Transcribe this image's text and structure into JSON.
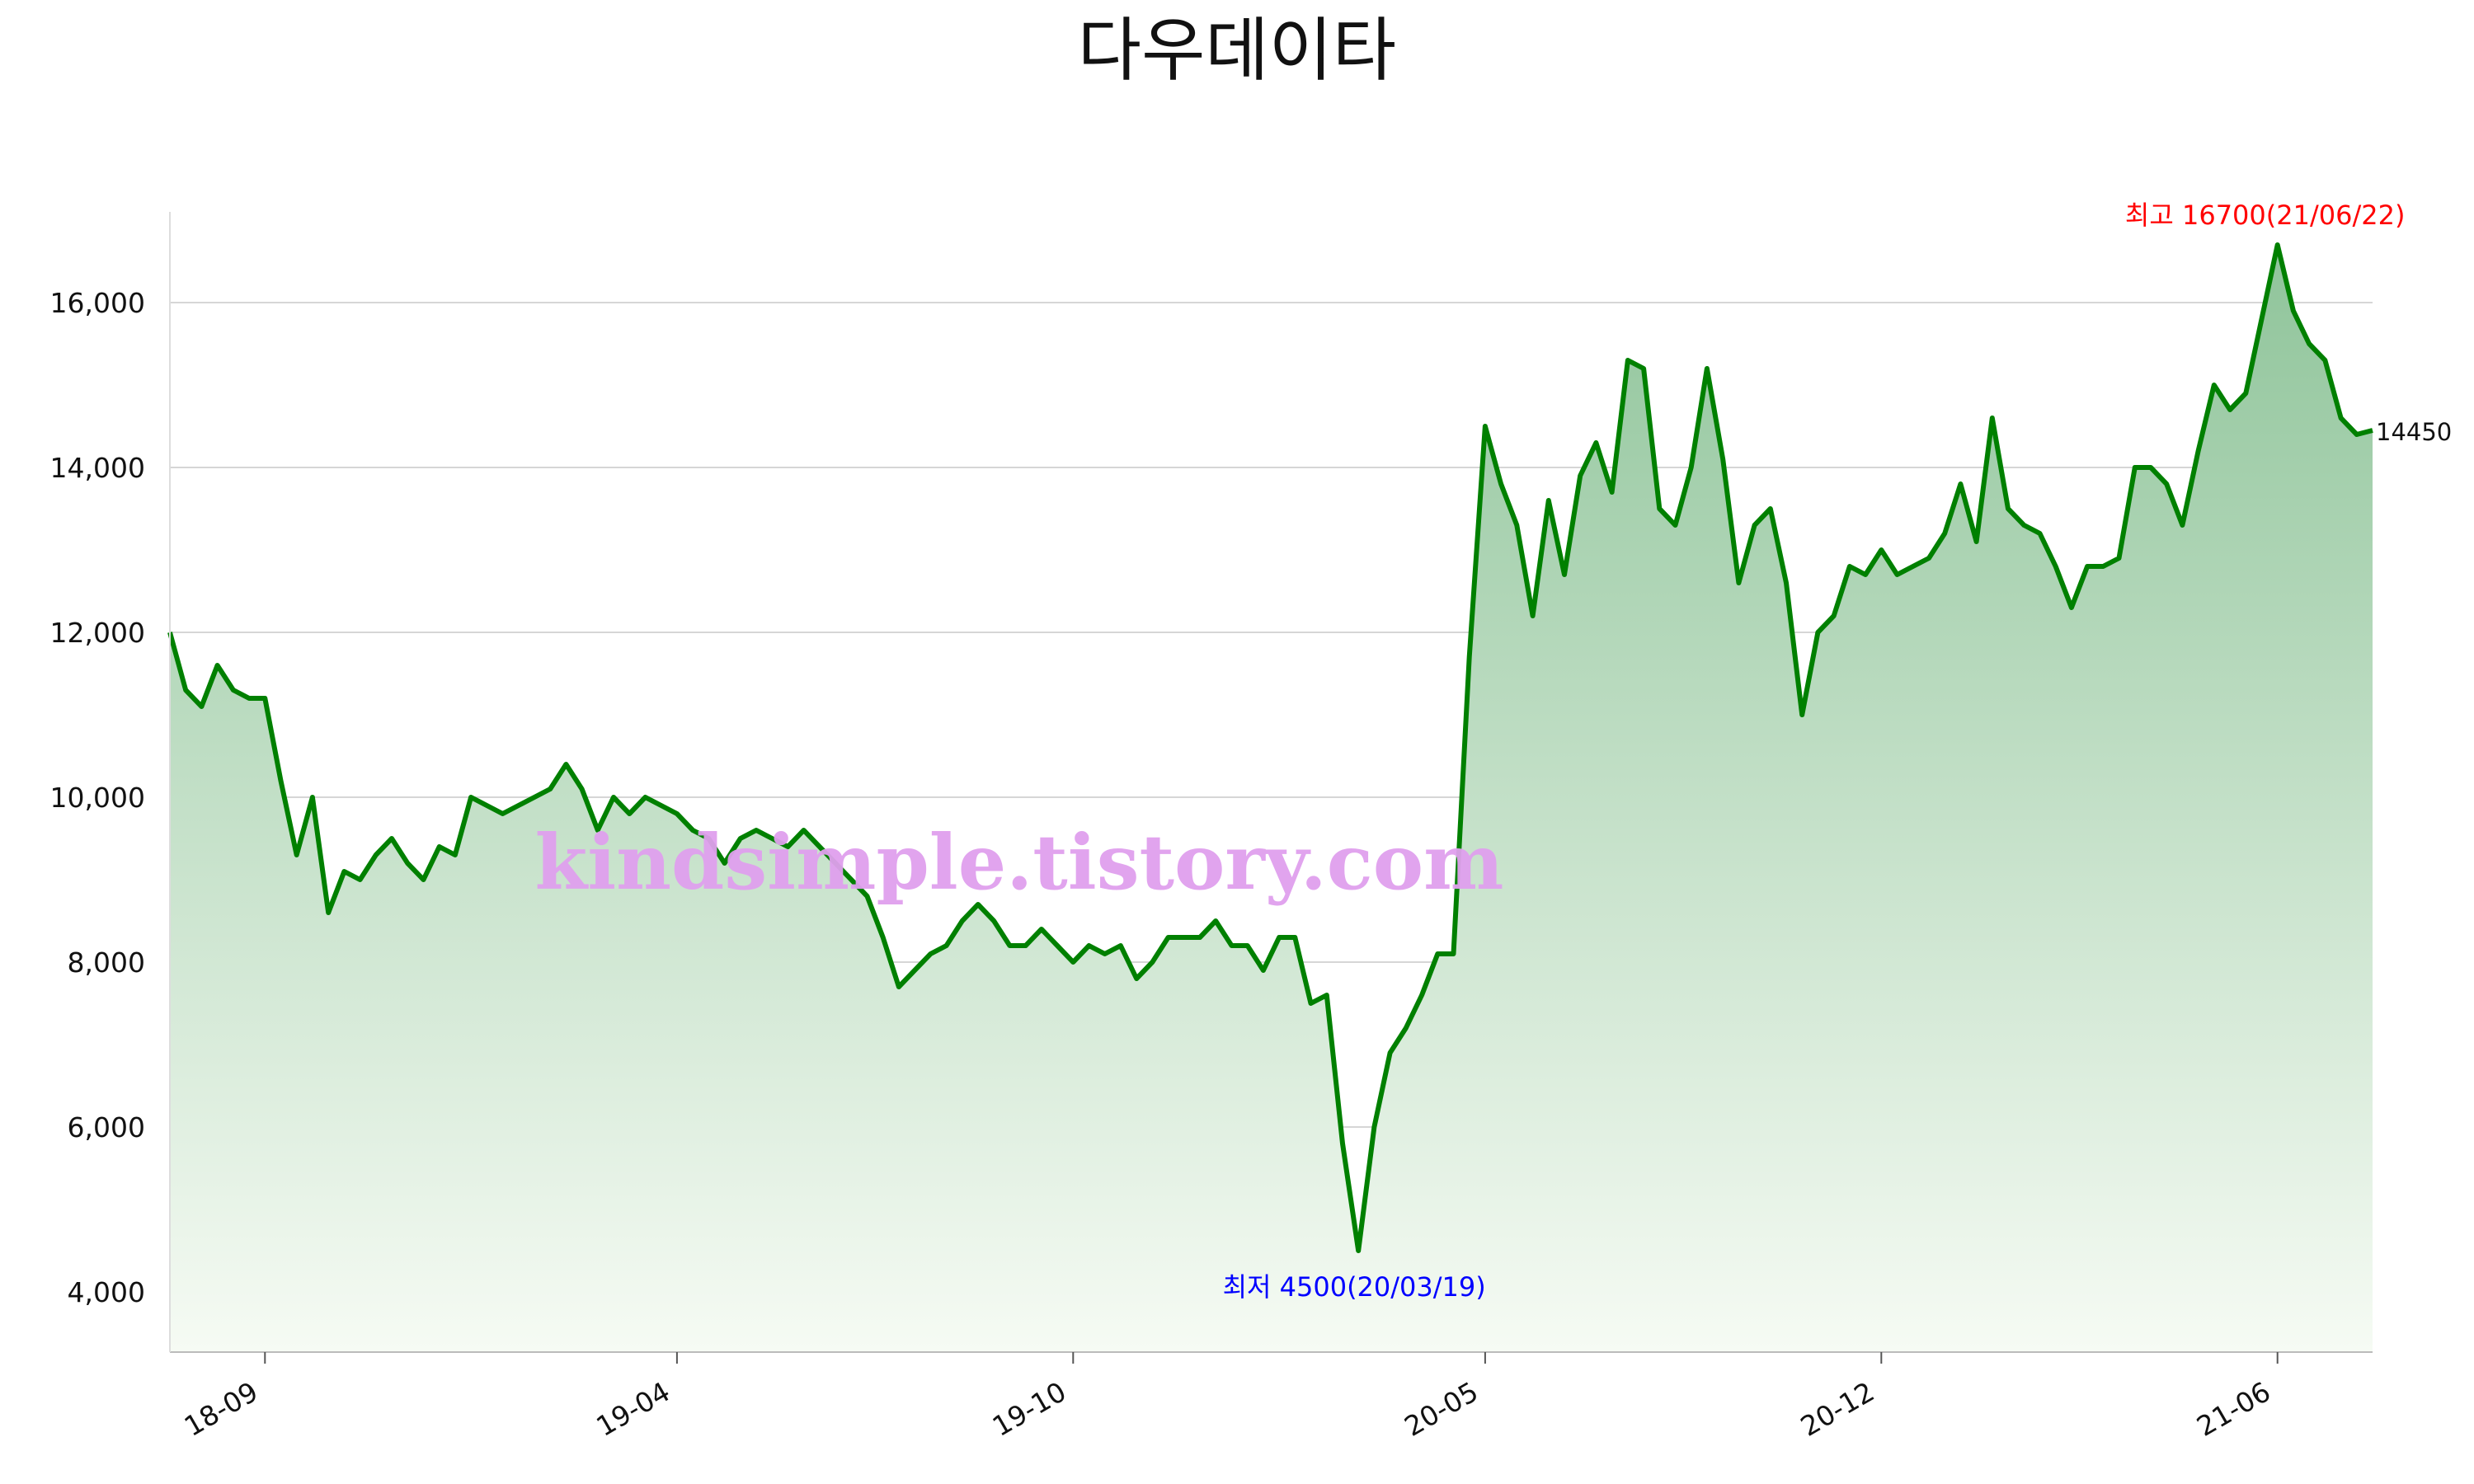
{
  "chart_data": {
    "type": "line",
    "title": "다우데이타",
    "watermark": "kindsimple.tistory.com",
    "categories": [
      null,
      null,
      null,
      null,
      null,
      null,
      "18-09",
      null,
      null,
      null,
      null,
      null,
      null,
      null,
      null,
      null,
      null,
      null,
      null,
      null,
      null,
      null,
      null,
      null,
      null,
      null,
      null,
      null,
      null,
      null,
      null,
      null,
      "19-04",
      null,
      null,
      null,
      null,
      null,
      null,
      null,
      null,
      null,
      null,
      null,
      null,
      null,
      null,
      null,
      null,
      null,
      null,
      null,
      null,
      null,
      null,
      null,
      null,
      "19-10",
      null,
      null,
      null,
      null,
      null,
      null,
      null,
      null,
      null,
      null,
      null,
      null,
      null,
      null,
      null,
      null,
      null,
      null,
      null,
      null,
      null,
      null,
      null,
      null,
      null,
      "20-05",
      null,
      null,
      null,
      null,
      null,
      null,
      null,
      null,
      null,
      null,
      null,
      null,
      null,
      null,
      null,
      null,
      null,
      null,
      null,
      null,
      null,
      null,
      null,
      null,
      "20-12",
      null,
      null,
      null,
      null,
      null,
      null,
      null,
      null,
      null,
      null,
      null,
      null,
      null,
      null,
      null,
      null,
      null,
      null,
      null,
      null,
      null,
      null,
      null,
      null,
      "21-06",
      null,
      null,
      null,
      null,
      null,
      null
    ],
    "series": [
      {
        "name": "다우데이타",
        "color": "#008000",
        "values": [
          12000,
          11300,
          11100,
          11600,
          11300,
          11200,
          11200,
          10200,
          9300,
          10000,
          8600,
          9100,
          9000,
          9300,
          9500,
          9200,
          9000,
          9400,
          9300,
          10000,
          9900,
          9800,
          9900,
          10000,
          10100,
          10400,
          10100,
          9600,
          10000,
          9800,
          10000,
          9900,
          9800,
          9600,
          9500,
          9200,
          9500,
          9600,
          9500,
          9400,
          9600,
          9400,
          9200,
          9000,
          8800,
          8300,
          7700,
          7900,
          8100,
          8200,
          8500,
          8700,
          8500,
          8200,
          8200,
          8400,
          8200,
          8000,
          8200,
          8100,
          8200,
          7800,
          8000,
          8300,
          8300,
          8300,
          8500,
          8200,
          8200,
          7900,
          8300,
          8300,
          7500,
          7600,
          5800,
          4500,
          6000,
          6900,
          7200,
          7600,
          8100,
          8100,
          11700,
          14500,
          13800,
          13300,
          12200,
          13600,
          12700,
          13900,
          14300,
          13700,
          15300,
          15200,
          13500,
          13300,
          14000,
          15200,
          14100,
          12600,
          13300,
          13500,
          12600,
          11000,
          12000,
          12200,
          12800,
          12700,
          13000,
          12700,
          12800,
          12900,
          13200,
          13800,
          13100,
          14600,
          13500,
          13300,
          13200,
          12800,
          12300,
          12800,
          12800,
          12900,
          14000,
          14000,
          13800,
          13300,
          14200,
          15000,
          14700,
          14900,
          15800,
          16700,
          15900,
          15500,
          15300,
          14600,
          14400,
          14450
        ]
      }
    ],
    "annotations": [
      {
        "text": "최고 16700(21/06/22)",
        "value": 16700,
        "color": "#ff0000"
      },
      {
        "text": "최저 4500(20/03/19)",
        "value": 4500,
        "color": "#0000ff"
      }
    ],
    "ylim": [
      3270,
      17400
    ],
    "yticks": [
      {
        "value": 4000,
        "label": "4,000"
      },
      {
        "value": 6000,
        "label": "6,000"
      },
      {
        "value": 8000,
        "label": "8,000"
      },
      {
        "value": 10000,
        "label": "10,000"
      },
      {
        "value": 12000,
        "label": "12,000"
      },
      {
        "value": 14000,
        "label": "14,000"
      },
      {
        "value": 16000,
        "label": "16,000"
      }
    ],
    "grid": true
  }
}
